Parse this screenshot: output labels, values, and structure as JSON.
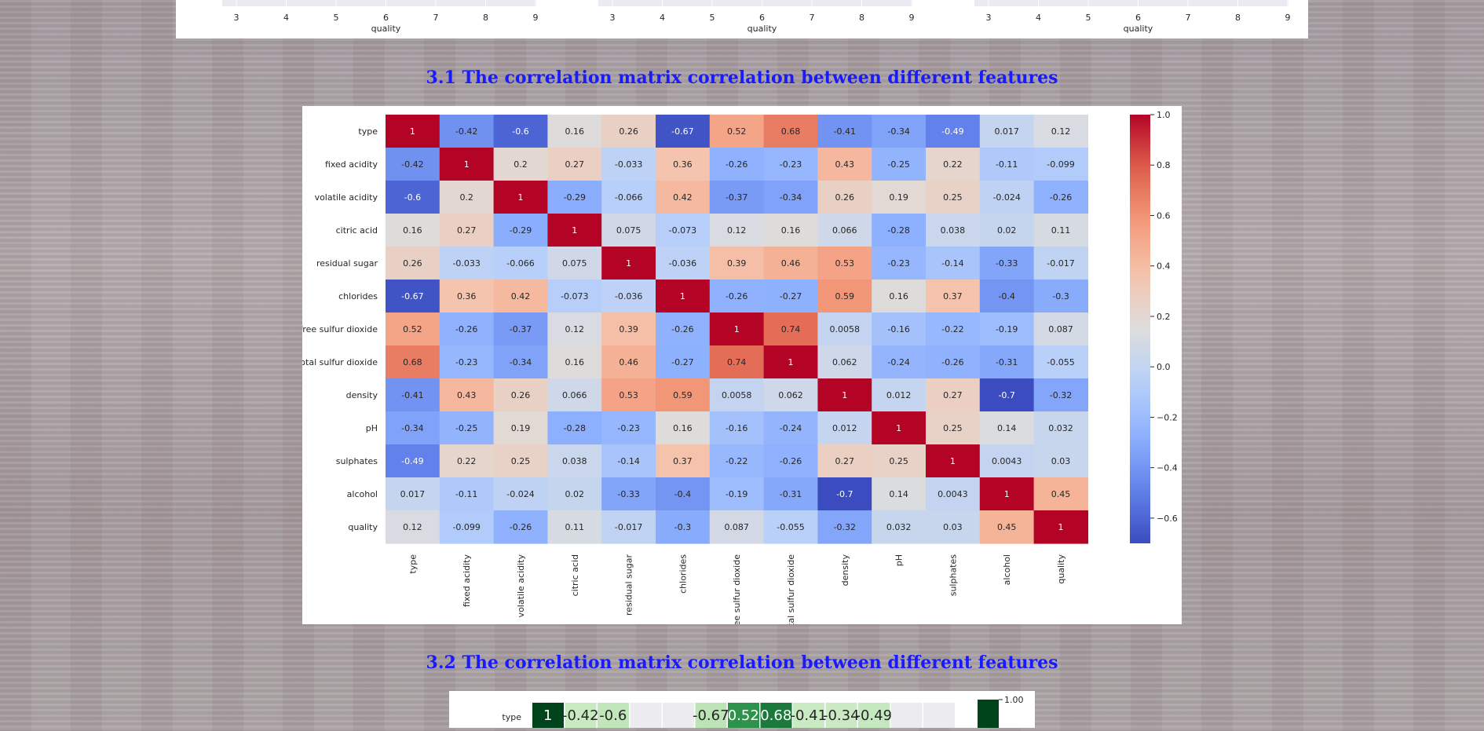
{
  "top_strip": {
    "xlabel": "quality",
    "ticks": [
      "3",
      "4",
      "5",
      "6",
      "7",
      "8",
      "9"
    ]
  },
  "section_31": {
    "title": "3.1 The correlation matrix correlation between different features"
  },
  "section_32": {
    "title": "3.2 The correlation matrix correlation between different features"
  },
  "chart_data": [
    {
      "type": "heatmap",
      "colormap": "coolwarm",
      "labels": [
        "type",
        "fixed acidity",
        "volatile acidity",
        "citric acid",
        "residual sugar",
        "chlorides",
        "free sulfur dioxide",
        "total sulfur dioxide",
        "density",
        "pH",
        "sulphates",
        "alcohol",
        "quality"
      ],
      "matrix": [
        [
          "1",
          "-0.42",
          "-0.6",
          "0.16",
          "0.26",
          "-0.67",
          "0.52",
          "0.68",
          "-0.41",
          "-0.34",
          "-0.49",
          "0.017",
          "0.12"
        ],
        [
          "-0.42",
          "1",
          "0.2",
          "0.27",
          "-0.033",
          "0.36",
          "-0.26",
          "-0.23",
          "0.43",
          "-0.25",
          "0.22",
          "-0.11",
          "-0.099"
        ],
        [
          "-0.6",
          "0.2",
          "1",
          "-0.29",
          "-0.066",
          "0.42",
          "-0.37",
          "-0.34",
          "0.26",
          "0.19",
          "0.25",
          "-0.024",
          "-0.26"
        ],
        [
          "0.16",
          "0.27",
          "-0.29",
          "1",
          "0.075",
          "-0.073",
          "0.12",
          "0.16",
          "0.066",
          "-0.28",
          "0.038",
          "0.02",
          "0.11"
        ],
        [
          "0.26",
          "-0.033",
          "-0.066",
          "0.075",
          "1",
          "-0.036",
          "0.39",
          "0.46",
          "0.53",
          "-0.23",
          "-0.14",
          "-0.33",
          "-0.017"
        ],
        [
          "-0.67",
          "0.36",
          "0.42",
          "-0.073",
          "-0.036",
          "1",
          "-0.26",
          "-0.27",
          "0.59",
          "0.16",
          "0.37",
          "-0.4",
          "-0.3"
        ],
        [
          "0.52",
          "-0.26",
          "-0.37",
          "0.12",
          "0.39",
          "-0.26",
          "1",
          "0.74",
          "0.0058",
          "-0.16",
          "-0.22",
          "-0.19",
          "0.087"
        ],
        [
          "0.68",
          "-0.23",
          "-0.34",
          "0.16",
          "0.46",
          "-0.27",
          "0.74",
          "1",
          "0.062",
          "-0.24",
          "-0.26",
          "-0.31",
          "-0.055"
        ],
        [
          "-0.41",
          "0.43",
          "0.26",
          "0.066",
          "0.53",
          "0.59",
          "0.0058",
          "0.062",
          "1",
          "0.012",
          "0.27",
          "-0.7",
          "-0.32"
        ],
        [
          "-0.34",
          "-0.25",
          "0.19",
          "-0.28",
          "-0.23",
          "0.16",
          "-0.16",
          "-0.24",
          "0.012",
          "1",
          "0.25",
          "0.14",
          "0.032"
        ],
        [
          "-0.49",
          "0.22",
          "0.25",
          "0.038",
          "-0.14",
          "0.37",
          "-0.22",
          "-0.26",
          "0.27",
          "0.25",
          "1",
          "0.0043",
          "0.03"
        ],
        [
          "0.017",
          "-0.11",
          "-0.024",
          "0.02",
          "-0.33",
          "-0.4",
          "-0.19",
          "-0.31",
          "-0.7",
          "0.14",
          "0.0043",
          "1",
          "0.45"
        ],
        [
          "0.12",
          "-0.099",
          "-0.26",
          "0.11",
          "-0.017",
          "-0.3",
          "0.087",
          "-0.055",
          "-0.32",
          "0.032",
          "0.03",
          "0.45",
          "1"
        ]
      ],
      "colorbar": {
        "range": [
          -0.7,
          1.0
        ],
        "ticks": [
          "1.0",
          "0.8",
          "0.6",
          "0.4",
          "0.2",
          "0.0",
          "−0.2",
          "−0.4",
          "−0.6"
        ]
      }
    },
    {
      "type": "heatmap",
      "colormap": "Greens",
      "labels": [
        "type"
      ],
      "visible_row": [
        "1",
        "-0.42",
        "-0.6",
        "",
        "",
        "-0.67",
        "0.52",
        "0.68",
        "-0.41",
        "-0.34",
        "-0.49",
        "",
        ""
      ],
      "colorbar": {
        "ticks": [
          "1.00"
        ]
      }
    }
  ]
}
